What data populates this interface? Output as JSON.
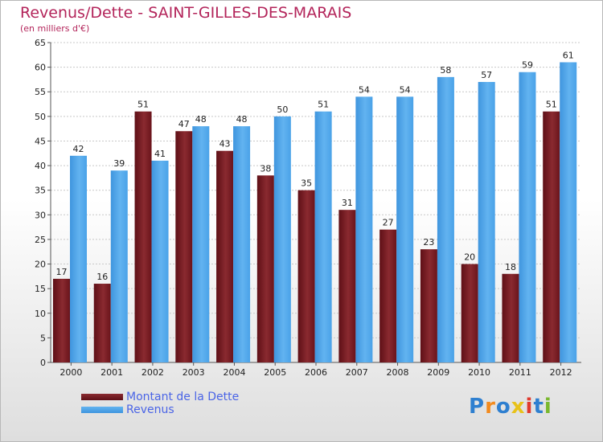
{
  "header": {
    "title": "Revenus/Dette - SAINT-GILLES-DES-MARAIS",
    "subtitle": "(en milliers d'€)"
  },
  "colors": {
    "title": "#b3245a",
    "legend_text": "#4a64e6",
    "dette": "#7a1a22",
    "revenus": "#4aa0e6",
    "grid": "#c8c8c8",
    "axis_text": "#222222"
  },
  "legend": {
    "items": [
      {
        "label": "Montant de la Dette"
      },
      {
        "label": "Revenus"
      }
    ]
  },
  "logo": {
    "text": "Proxiti"
  },
  "chart_data": {
    "type": "bar",
    "title": "Revenus/Dette - SAINT-GILLES-DES-MARAIS",
    "subtitle": "(en milliers d'€)",
    "categories": [
      "2000",
      "2001",
      "2002",
      "2003",
      "2004",
      "2005",
      "2006",
      "2007",
      "2008",
      "2009",
      "2010",
      "2011",
      "2012"
    ],
    "series": [
      {
        "name": "Montant de la Dette",
        "values": [
          17,
          16,
          51,
          47,
          43,
          38,
          35,
          31,
          27,
          23,
          20,
          18,
          51
        ]
      },
      {
        "name": "Revenus",
        "values": [
          42,
          39,
          41,
          48,
          48,
          50,
          51,
          54,
          54,
          58,
          57,
          59,
          61
        ]
      }
    ],
    "ylim": [
      0,
      65
    ],
    "yticks": [
      0,
      5,
      10,
      15,
      20,
      25,
      30,
      35,
      40,
      45,
      50,
      55,
      60,
      65
    ],
    "grid": true,
    "legend_position": "bottom-left"
  }
}
